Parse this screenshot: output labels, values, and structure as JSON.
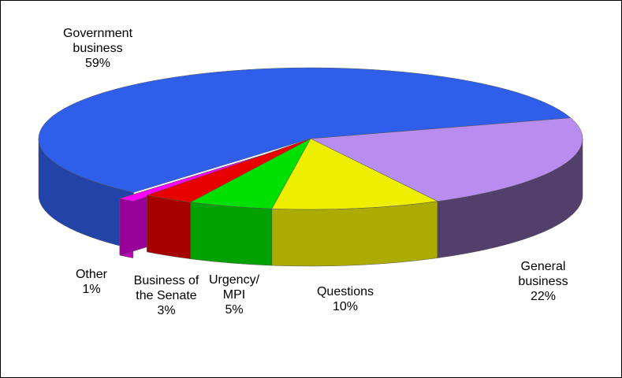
{
  "chart_data": {
    "type": "pie",
    "categories": [
      "Government business",
      "General business",
      "Questions",
      "Urgency/MPI",
      "Business of the Senate",
      "Other"
    ],
    "values": [
      59,
      22,
      10,
      5,
      3,
      1
    ],
    "value_labels": [
      "59%",
      "22%",
      "10%",
      "5%",
      "3%",
      "1%"
    ],
    "colors": [
      "#2f5fea",
      "#b98cf0",
      "#eeee00",
      "#00e000",
      "#e80000",
      "#ff00ff"
    ],
    "explode": [
      false,
      false,
      false,
      false,
      false,
      true
    ]
  }
}
